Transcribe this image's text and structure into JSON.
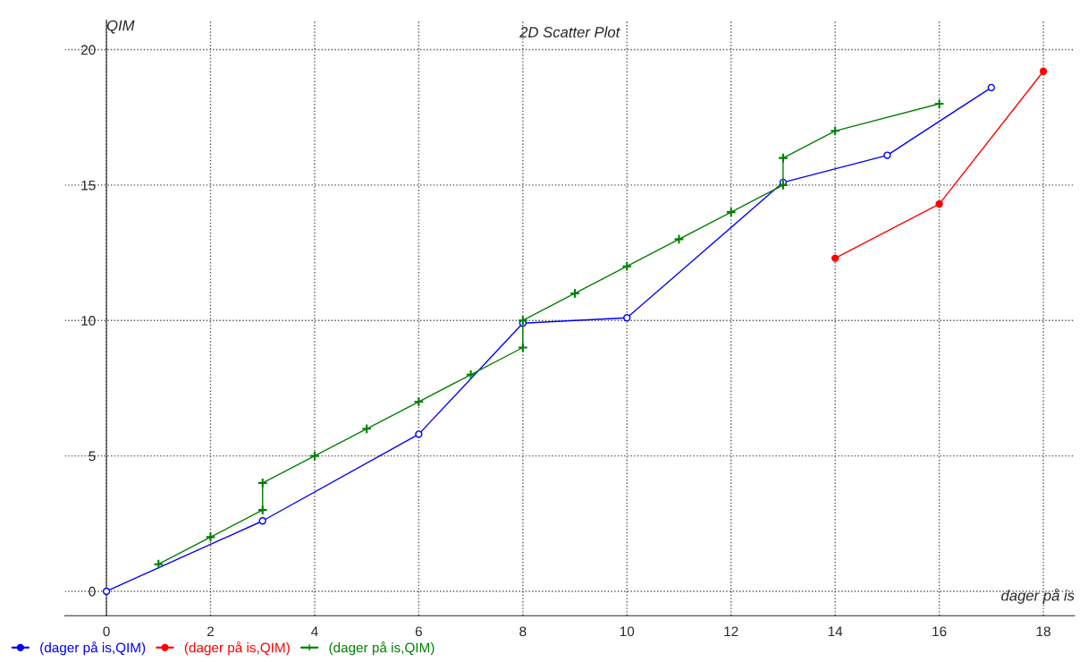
{
  "chart_data": {
    "type": "line",
    "title": "2D Scatter Plot",
    "xlabel": "dager på is",
    "ylabel": "QIM",
    "xlim": [
      -0.8,
      18.6
    ],
    "ylim": [
      -0.9,
      21.1
    ],
    "xticks": [
      0,
      2,
      4,
      6,
      8,
      10,
      12,
      14,
      16,
      18
    ],
    "yticks": [
      0,
      5,
      10,
      15,
      20
    ],
    "grid": true,
    "legend": "bottom",
    "line_style": "solid",
    "series": [
      {
        "name": "(dager på is,QIM)",
        "color": "#0000ff",
        "marker": "circle",
        "x": [
          0,
          3,
          6,
          8,
          10,
          13,
          15,
          17
        ],
        "values": [
          0,
          2.6,
          5.8,
          9.9,
          10.1,
          15.1,
          16.1,
          18.6
        ]
      },
      {
        "name": "(dager på is,QIM)",
        "color": "#ff0000",
        "marker": "circle",
        "x": [
          14,
          16,
          18
        ],
        "values": [
          12.3,
          14.3,
          19.2
        ]
      },
      {
        "name": "(dager på is,QIM)",
        "color": "#008000",
        "marker": "cross",
        "x": [
          1,
          2,
          3,
          3,
          4,
          5,
          6,
          7,
          8,
          8,
          9,
          10,
          11,
          12,
          13,
          13,
          14,
          16
        ],
        "values": [
          1,
          2,
          3,
          4,
          5,
          6,
          7,
          8,
          9,
          10,
          11,
          12,
          13,
          14,
          15,
          16,
          17,
          18
        ]
      }
    ]
  }
}
